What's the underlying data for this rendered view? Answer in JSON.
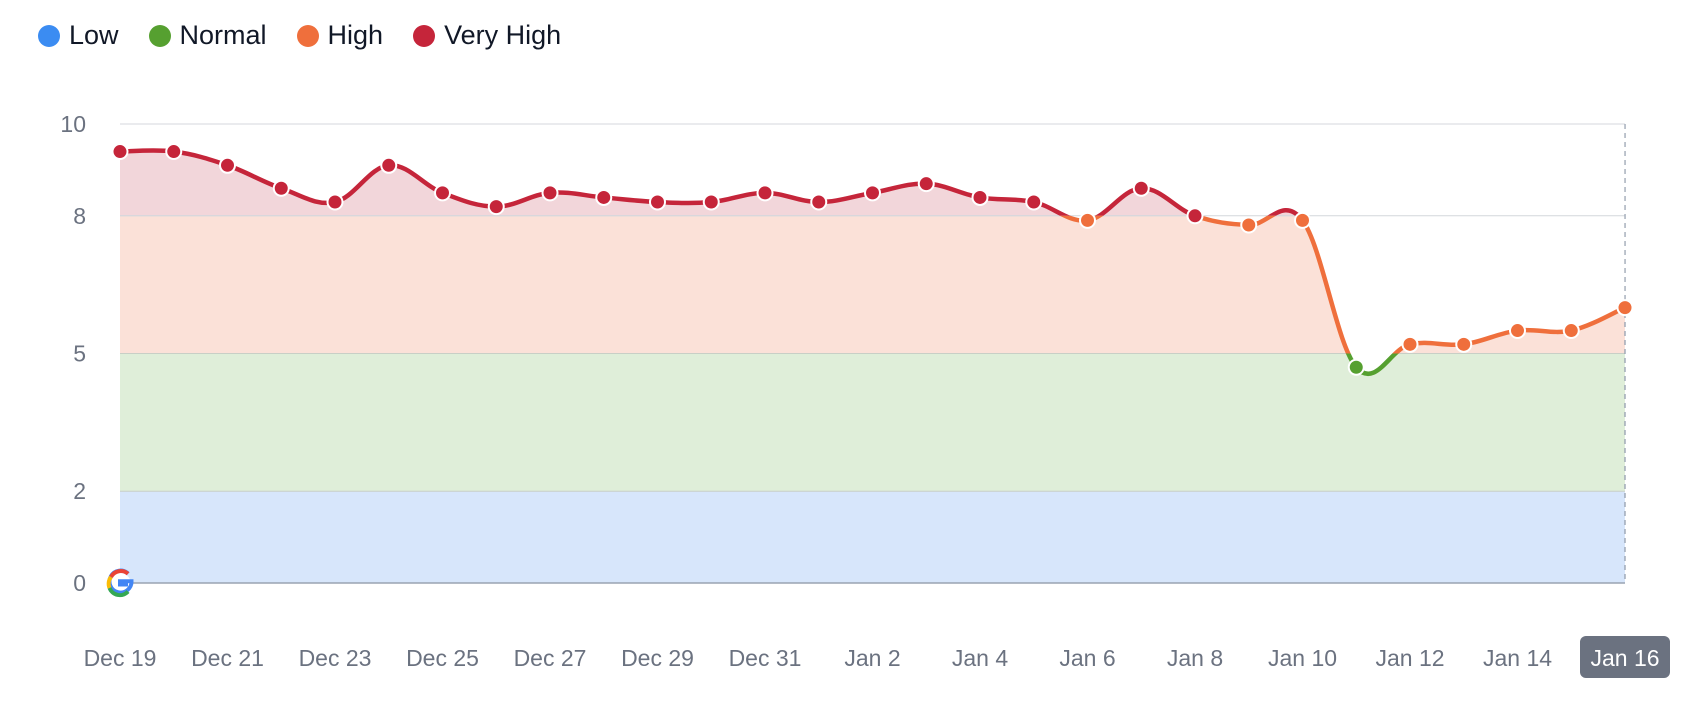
{
  "legend": [
    {
      "label": "Low",
      "color": "#3b8cf2"
    },
    {
      "label": "Normal",
      "color": "#56a030"
    },
    {
      "label": "High",
      "color": "#ef6f3c"
    },
    {
      "label": "Very High",
      "color": "#c5253a"
    }
  ],
  "chart_data": {
    "type": "line",
    "title": "",
    "xlabel": "",
    "ylabel": "",
    "ylim": [
      0,
      10
    ],
    "y_ticks": [
      "0",
      "2",
      "5",
      "8",
      "10"
    ],
    "x_ticks": [
      "Dec 19",
      "Dec 21",
      "Dec 23",
      "Dec 25",
      "Dec 27",
      "Dec 29",
      "Dec 31",
      "Jan 2",
      "Jan 4",
      "Jan 6",
      "Jan 8",
      "Jan 10",
      "Jan 12",
      "Jan 14",
      "Jan 16"
    ],
    "highlighted_x_tick": "Jan 16",
    "bands": [
      {
        "name": "Low",
        "from": 0,
        "to": 2,
        "color": "#d7e6fb"
      },
      {
        "name": "Normal",
        "from": 2,
        "to": 5,
        "color": "#dfeed9"
      },
      {
        "name": "High",
        "from": 5,
        "to": 8,
        "color": "#fbe1d8"
      },
      {
        "name": "Very High",
        "from": 8,
        "to": 10,
        "color": "#f2d6da"
      }
    ],
    "x": [
      "Dec 19",
      "Dec 20",
      "Dec 21",
      "Dec 22",
      "Dec 23",
      "Dec 24",
      "Dec 25",
      "Dec 26",
      "Dec 27",
      "Dec 28",
      "Dec 29",
      "Dec 30",
      "Dec 31",
      "Jan 1",
      "Jan 2",
      "Jan 3",
      "Jan 4",
      "Jan 5",
      "Jan 6",
      "Jan 7",
      "Jan 8",
      "Jan 9",
      "Jan 10",
      "Jan 11",
      "Jan 12",
      "Jan 13",
      "Jan 14",
      "Jan 15",
      "Jan 16"
    ],
    "values": [
      9.4,
      9.4,
      9.1,
      8.6,
      8.3,
      9.1,
      8.5,
      8.2,
      8.5,
      8.4,
      8.3,
      8.3,
      8.5,
      8.3,
      8.5,
      8.7,
      8.4,
      8.3,
      7.9,
      8.6,
      8.0,
      7.8,
      7.9,
      4.7,
      5.2,
      5.2,
      5.5,
      5.5,
      6.0
    ],
    "grid": true,
    "legend_position": "top-left"
  }
}
